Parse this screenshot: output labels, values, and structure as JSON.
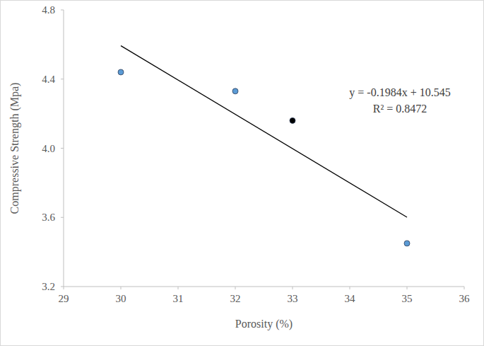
{
  "chart_data": {
    "type": "scatter",
    "x_label": "Porosity (%)",
    "y_label": "Compressive Strength (Mpa)",
    "annotations": [
      "y = -0.1984x + 10.545",
      "R² = 0.8472"
    ],
    "xlim": [
      29,
      36
    ],
    "xticks": [
      29,
      30,
      31,
      32,
      33,
      34,
      35,
      36
    ],
    "ylim": [
      3.2,
      4.8
    ],
    "yticks": [
      3.2,
      3.6,
      {
        "value": 4,
        "label": "4.0"
      },
      4.4,
      4.8
    ],
    "grid": false,
    "series": [
      {
        "type": "scatter",
        "marker": "circle",
        "x": [
          30,
          32,
          33,
          35
        ],
        "values": [
          4.44,
          4.33,
          4.16,
          3.45
        ],
        "colors": [
          "#5b9bd5",
          "#5b9bd5",
          "#000000",
          "#5b9bd5"
        ]
      },
      {
        "type": "line",
        "line_style": "solid",
        "color": "#000000",
        "x": [
          30,
          35
        ],
        "values": [
          4.593,
          3.601
        ]
      }
    ]
  }
}
